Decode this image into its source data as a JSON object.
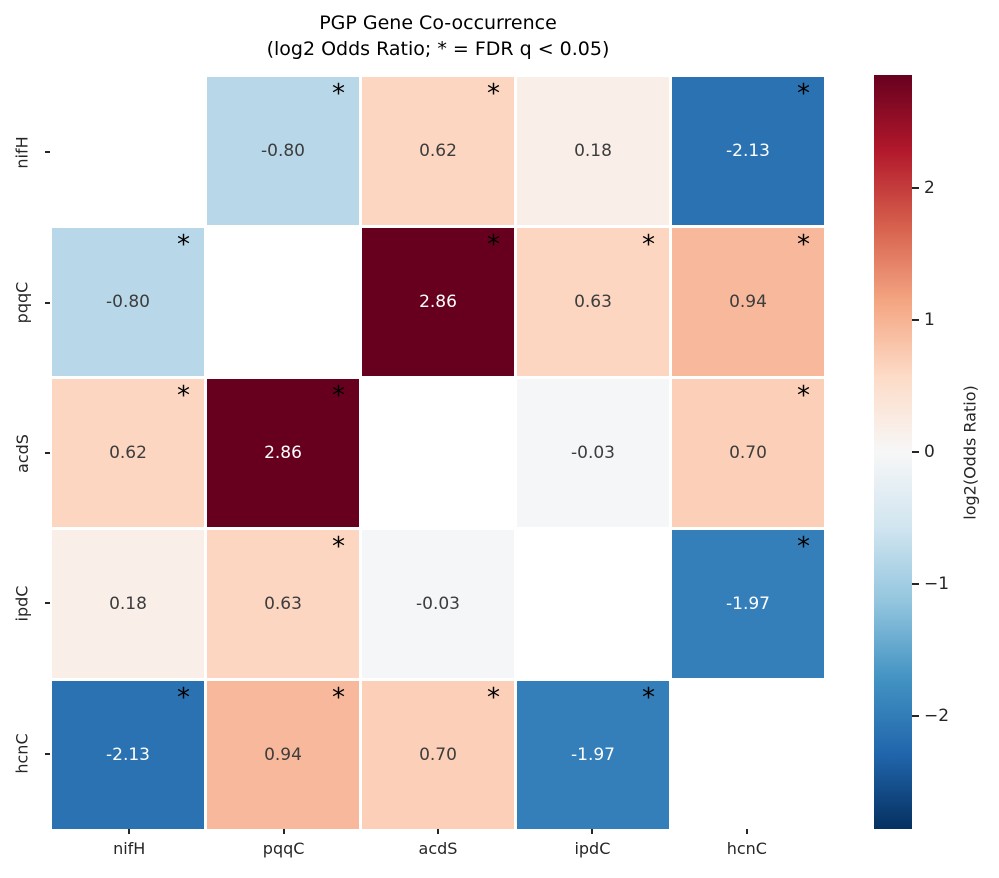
{
  "title": {
    "line1": "PGP Gene Co-occurrence",
    "line2": "(log2 Odds Ratio; * = FDR q < 0.05)"
  },
  "colors": {
    "background": "#ffffff",
    "axis_text": "#262626",
    "cell_text_dark": "#3d3d3d",
    "cell_text_light": "#ffffff",
    "star": "#000000"
  },
  "chart_data": {
    "type": "heatmap",
    "title": "PGP Gene Co-occurrence (log2 Odds Ratio; * = FDR q < 0.05)",
    "rows": [
      "nifH",
      "pqqC",
      "acdS",
      "ipdC",
      "hcnC"
    ],
    "cols": [
      "nifH",
      "pqqC",
      "acdS",
      "ipdC",
      "hcnC"
    ],
    "values": [
      [
        null,
        -0.8,
        0.62,
        0.18,
        -2.13
      ],
      [
        -0.8,
        null,
        2.86,
        0.63,
        0.94
      ],
      [
        0.62,
        2.86,
        null,
        -0.03,
        0.7
      ],
      [
        0.18,
        0.63,
        -0.03,
        null,
        -1.97
      ],
      [
        -2.13,
        0.94,
        0.7,
        -1.97,
        null
      ]
    ],
    "significant": [
      [
        false,
        true,
        true,
        false,
        true
      ],
      [
        true,
        false,
        true,
        true,
        true
      ],
      [
        true,
        true,
        false,
        false,
        true
      ],
      [
        false,
        true,
        false,
        false,
        true
      ],
      [
        true,
        true,
        true,
        true,
        false
      ]
    ],
    "value_format_decimals": 2,
    "colormap": "RdBu_r",
    "vmin": -2.86,
    "vmax": 2.86,
    "colormap_stops_low_to_high": [
      "#053061",
      "#2166ac",
      "#4393c3",
      "#92c5de",
      "#d1e5f0",
      "#f7f7f7",
      "#fddbc7",
      "#f4a582",
      "#d6604d",
      "#b2182b",
      "#67001f"
    ],
    "colorbar": {
      "label": "log2(Odds Ratio)",
      "tick_labels": [
        "2",
        "1",
        "0",
        "−1",
        "−2"
      ],
      "tick_values": [
        2,
        1,
        0,
        -1,
        -2
      ],
      "position": "right"
    },
    "grid": false,
    "diagonal_masked": true
  }
}
